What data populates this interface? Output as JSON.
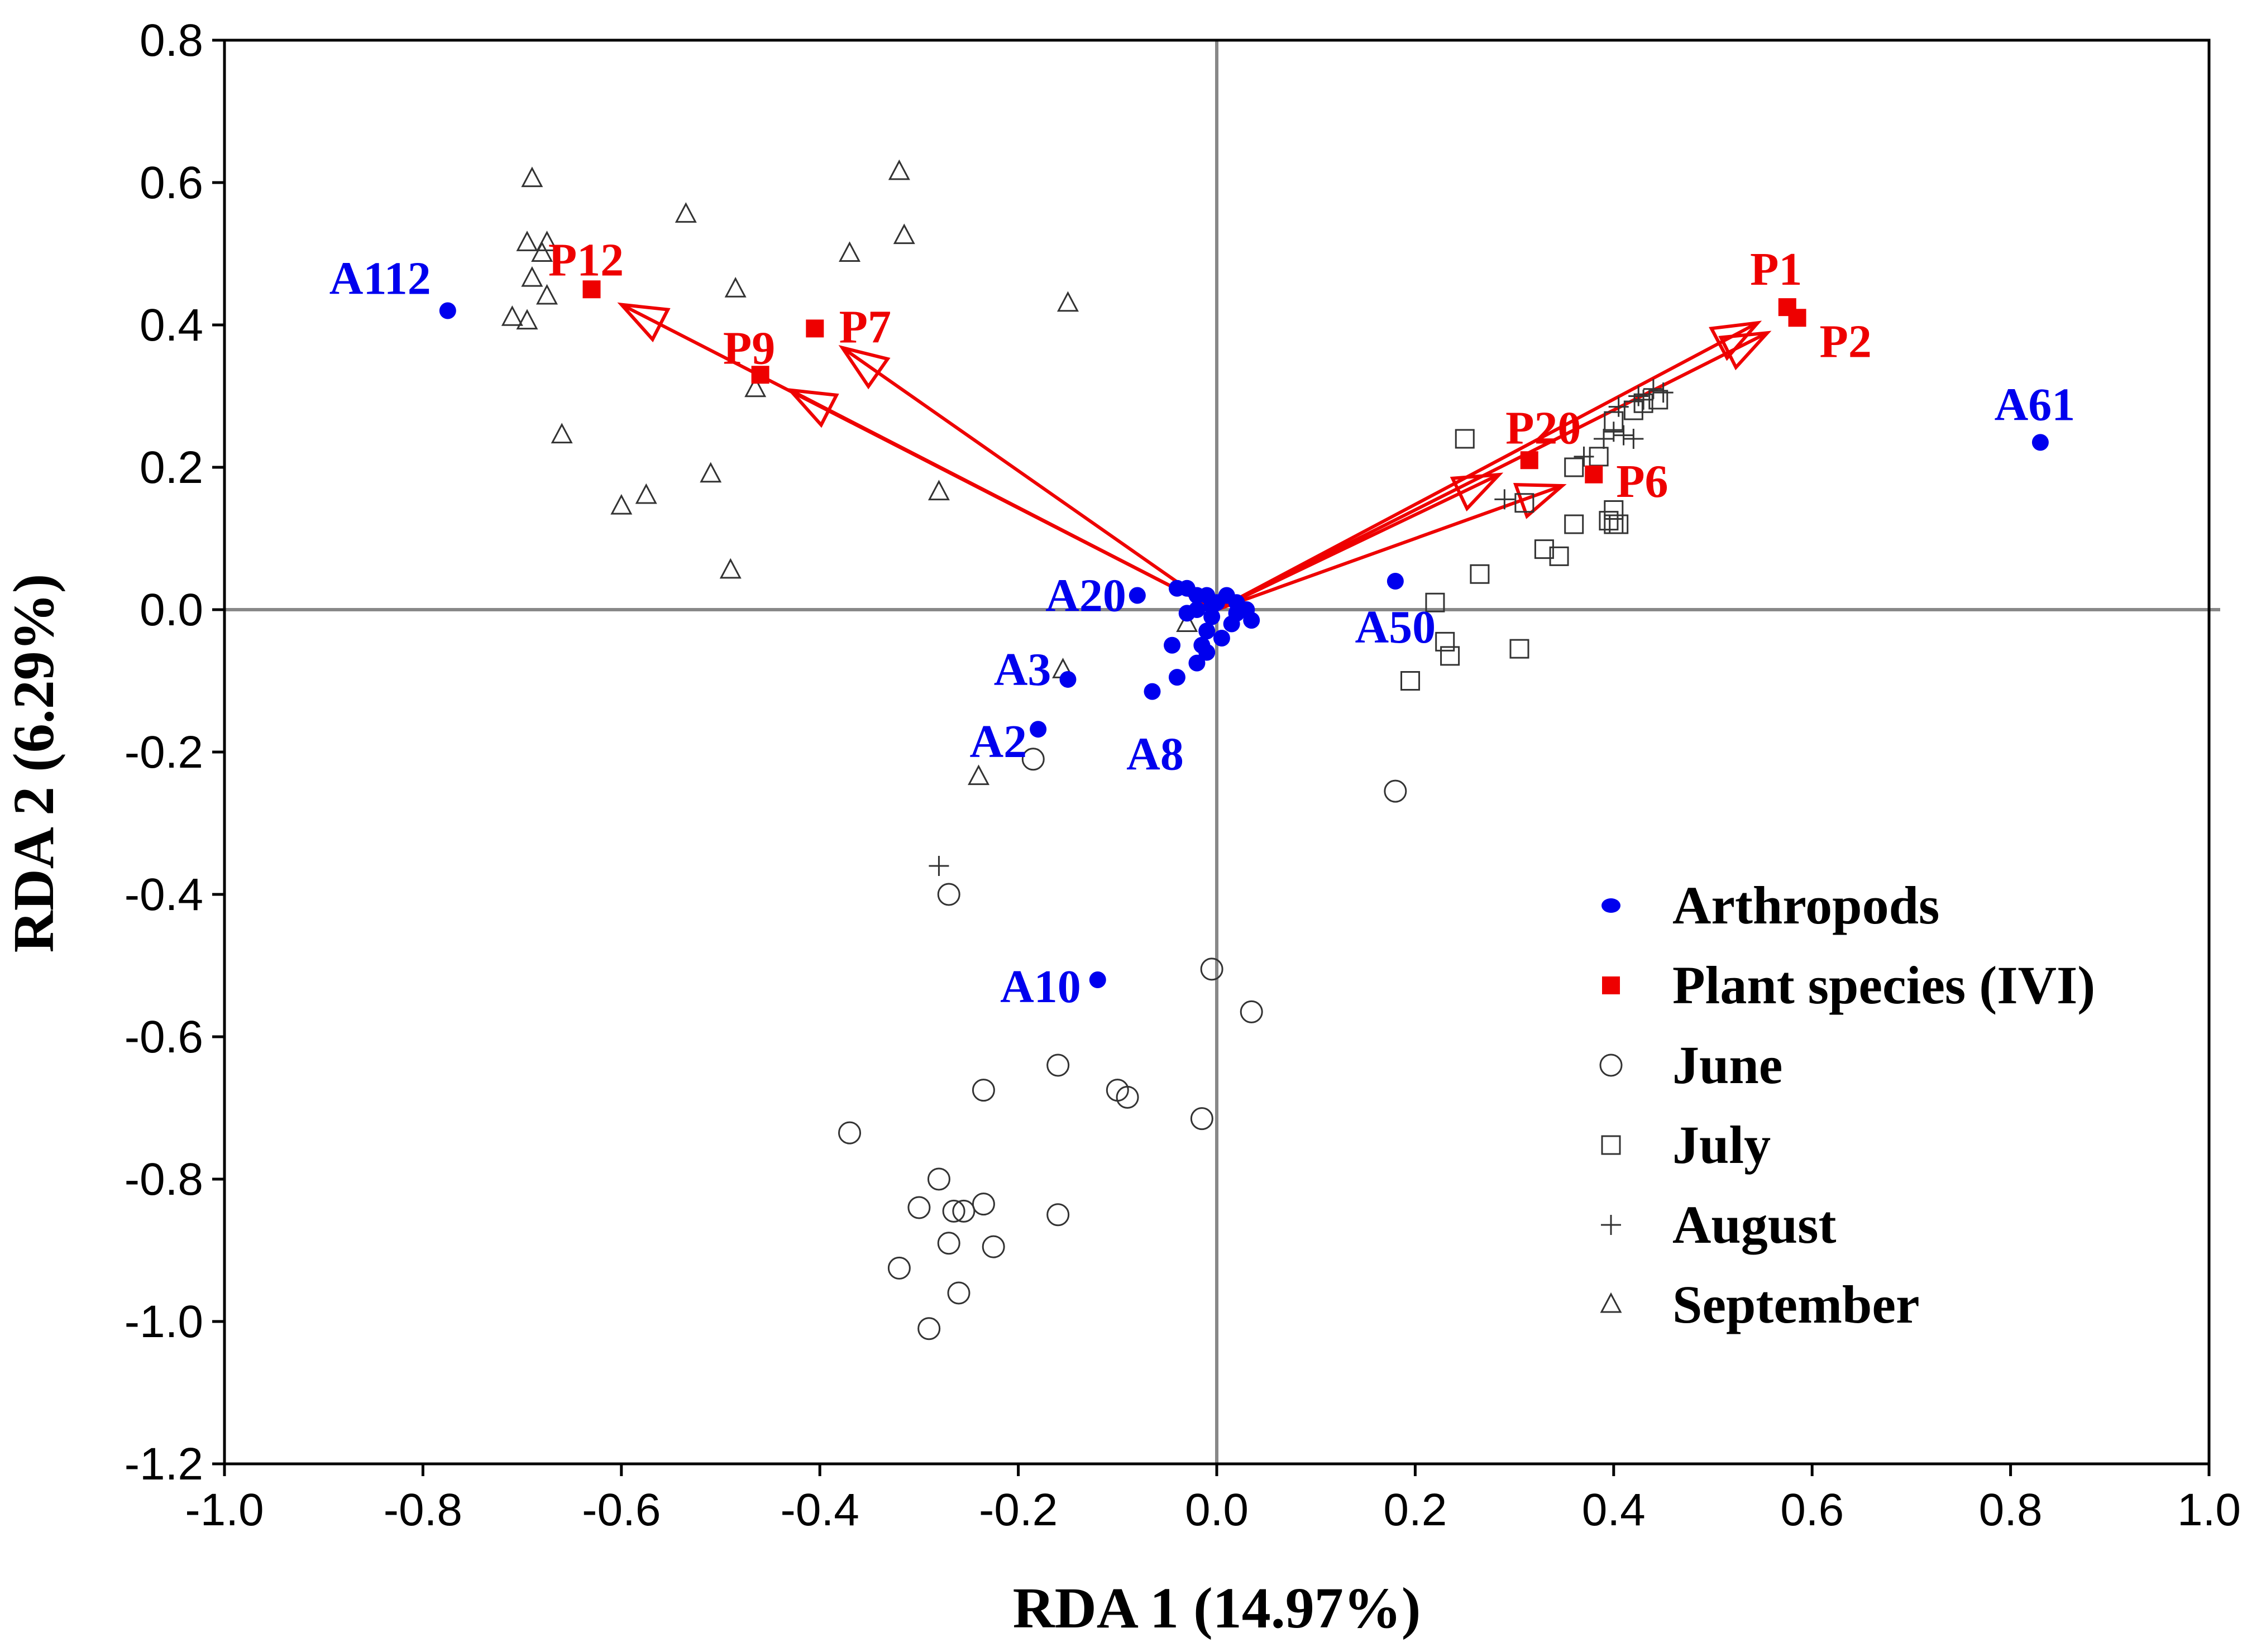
{
  "colors": {
    "arthropod": "#0000ee",
    "plant": "#ee0000",
    "site": "#333333",
    "axis": "#888888",
    "frame": "#000000"
  },
  "chart_data": {
    "type": "scatter",
    "subtype": "RDA biplot",
    "xlabel": "RDA 1 (14.97%)",
    "ylabel": "RDA 2 (6.29%)",
    "xlim": [
      -1.0,
      1.0
    ],
    "ylim": [
      -1.2,
      0.8
    ],
    "xticks": [
      -1.0,
      -0.8,
      -0.6,
      -0.4,
      -0.2,
      0.0,
      0.2,
      0.4,
      0.6,
      0.8,
      1.0
    ],
    "yticks": [
      -1.2,
      -1.0,
      -0.8,
      -0.6,
      -0.4,
      -0.2,
      0.0,
      0.2,
      0.4,
      0.6,
      0.8
    ],
    "xtick_labels": [
      "-1.0",
      "-0.8",
      "-0.6",
      "-0.4",
      "-0.2",
      "0.0",
      "0.2",
      "0.4",
      "0.6",
      "0.8",
      "1.0"
    ],
    "ytick_labels": [
      "-1.2",
      "-1.0",
      "-0.8",
      "-0.6",
      "-0.4",
      "-0.2",
      "0.0",
      "0.2",
      "0.4",
      "0.6",
      "0.8"
    ],
    "legend": {
      "position": "bottom-right",
      "entries": [
        {
          "label": "Arthropods",
          "marker": "filled-circle"
        },
        {
          "label": "Plant species (IVI)",
          "marker": "filled-square"
        },
        {
          "label": "June",
          "marker": "open-circle"
        },
        {
          "label": "July",
          "marker": "open-square"
        },
        {
          "label": "August",
          "marker": "plus"
        },
        {
          "label": "September",
          "marker": "open-triangle"
        }
      ]
    },
    "plant_species": [
      {
        "label": "P12",
        "x": -0.63,
        "y": 0.45
      },
      {
        "label": "P7",
        "x": -0.405,
        "y": 0.395
      },
      {
        "label": "P9",
        "x": -0.46,
        "y": 0.33
      },
      {
        "label": "P1",
        "x": 0.575,
        "y": 0.425
      },
      {
        "label": "P2",
        "x": 0.585,
        "y": 0.41
      },
      {
        "label": "P20",
        "x": 0.315,
        "y": 0.21
      },
      {
        "label": "P6",
        "x": 0.38,
        "y": 0.19
      }
    ],
    "arthropods_labeled": [
      {
        "label": "A112",
        "x": -0.775,
        "y": 0.42
      },
      {
        "label": "A61",
        "x": 0.83,
        "y": 0.235
      },
      {
        "label": "A20",
        "x": -0.08,
        "y": 0.02
      },
      {
        "label": "A50",
        "x": 0.18,
        "y": 0.04
      },
      {
        "label": "A3",
        "x": -0.15,
        "y": -0.098
      },
      {
        "label": "A2",
        "x": -0.18,
        "y": -0.168
      },
      {
        "label": "A8",
        "x": -0.065,
        "y": -0.115
      },
      {
        "label": "A10",
        "x": -0.12,
        "y": -0.52
      }
    ],
    "arthropods_unlabeled": [
      [
        -0.04,
        0.03
      ],
      [
        -0.03,
        0.03
      ],
      [
        -0.02,
        0.02
      ],
      [
        -0.01,
        0.02
      ],
      [
        0.0,
        0.01
      ],
      [
        0.01,
        0.02
      ],
      [
        0.02,
        0.01
      ],
      [
        0.03,
        0.0
      ],
      [
        0.035,
        -0.015
      ],
      [
        0.015,
        -0.02
      ],
      [
        -0.005,
        -0.01
      ],
      [
        -0.02,
        0.0
      ],
      [
        -0.03,
        -0.005
      ],
      [
        -0.01,
        -0.03
      ],
      [
        -0.015,
        -0.05
      ],
      [
        -0.01,
        -0.06
      ],
      [
        -0.02,
        -0.075
      ],
      [
        -0.045,
        -0.05
      ],
      [
        -0.04,
        -0.095
      ],
      [
        0.005,
        -0.04
      ],
      [
        -0.005,
        0.005
      ],
      [
        0.02,
        -0.005
      ]
    ],
    "sites": {
      "June": [
        [
          -0.185,
          -0.21
        ],
        [
          -0.27,
          -0.4
        ],
        [
          -0.005,
          -0.505
        ],
        [
          0.035,
          -0.565
        ],
        [
          -0.16,
          -0.64
        ],
        [
          -0.235,
          -0.675
        ],
        [
          -0.1,
          -0.675
        ],
        [
          -0.09,
          -0.685
        ],
        [
          -0.015,
          -0.715
        ],
        [
          -0.37,
          -0.735
        ],
        [
          -0.28,
          -0.8
        ],
        [
          -0.3,
          -0.84
        ],
        [
          -0.265,
          -0.845
        ],
        [
          -0.255,
          -0.845
        ],
        [
          -0.235,
          -0.835
        ],
        [
          -0.16,
          -0.85
        ],
        [
          -0.27,
          -0.89
        ],
        [
          -0.225,
          -0.895
        ],
        [
          -0.32,
          -0.925
        ],
        [
          -0.26,
          -0.96
        ],
        [
          -0.29,
          -1.01
        ],
        [
          0.18,
          -0.255
        ]
      ],
      "July": [
        [
          0.25,
          0.24
        ],
        [
          0.31,
          0.15
        ],
        [
          0.345,
          0.075
        ],
        [
          0.33,
          0.085
        ],
        [
          0.36,
          0.12
        ],
        [
          0.395,
          0.125
        ],
        [
          0.4,
          0.12
        ],
        [
          0.405,
          0.12
        ],
        [
          0.4,
          0.14
        ],
        [
          0.36,
          0.2
        ],
        [
          0.385,
          0.215
        ],
        [
          0.4,
          0.265
        ],
        [
          0.42,
          0.28
        ],
        [
          0.43,
          0.29
        ],
        [
          0.445,
          0.295
        ],
        [
          0.22,
          0.01
        ],
        [
          0.265,
          0.05
        ],
        [
          0.23,
          -0.045
        ],
        [
          0.235,
          -0.065
        ],
        [
          0.305,
          -0.055
        ],
        [
          0.195,
          -0.1
        ]
      ],
      "August": [
        [
          0.29,
          0.155
        ],
        [
          0.37,
          0.215
        ],
        [
          0.39,
          0.24
        ],
        [
          0.4,
          0.25
        ],
        [
          0.41,
          0.245
        ],
        [
          0.42,
          0.24
        ],
        [
          0.425,
          0.3
        ],
        [
          0.44,
          0.31
        ],
        [
          0.45,
          0.305
        ],
        [
          0.43,
          0.295
        ],
        [
          -0.28,
          -0.36
        ],
        [
          0.405,
          0.285
        ]
      ],
      "September": [
        [
          -0.69,
          0.605
        ],
        [
          -0.32,
          0.615
        ],
        [
          -0.535,
          0.555
        ],
        [
          -0.315,
          0.525
        ],
        [
          -0.695,
          0.515
        ],
        [
          -0.675,
          0.515
        ],
        [
          -0.37,
          0.5
        ],
        [
          -0.68,
          0.5
        ],
        [
          -0.69,
          0.465
        ],
        [
          -0.675,
          0.44
        ],
        [
          -0.485,
          0.45
        ],
        [
          -0.15,
          0.43
        ],
        [
          -0.71,
          0.41
        ],
        [
          -0.695,
          0.405
        ],
        [
          -0.465,
          0.31
        ],
        [
          -0.66,
          0.245
        ],
        [
          -0.51,
          0.19
        ],
        [
          -0.575,
          0.16
        ],
        [
          -0.6,
          0.145
        ],
        [
          -0.28,
          0.165
        ],
        [
          -0.49,
          0.055
        ],
        [
          -0.03,
          -0.02
        ],
        [
          -0.155,
          -0.085
        ],
        [
          -0.24,
          -0.235
        ]
      ]
    }
  }
}
